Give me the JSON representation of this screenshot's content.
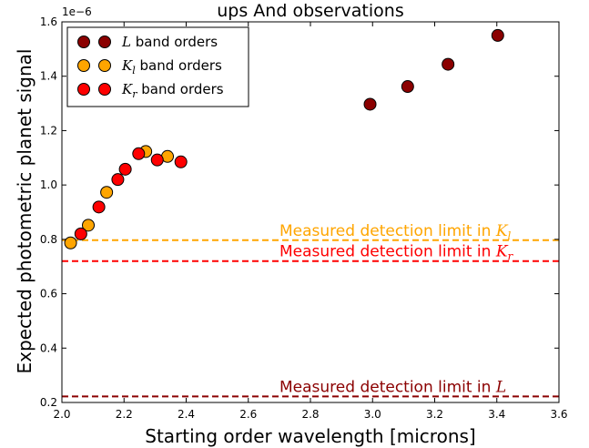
{
  "chart_data": {
    "type": "scatter",
    "title": "ups And observations",
    "xlabel": "Starting order wavelength [microns]",
    "ylabel": "Expected photometric planet signal",
    "offset_label": "1e−6",
    "xlim": [
      2.0,
      3.6
    ],
    "ylim": [
      0.2,
      1.6
    ],
    "xticks": [
      "2.0",
      "2.2",
      "2.4",
      "2.6",
      "2.8",
      "3.0",
      "3.2",
      "3.4",
      "3.6"
    ],
    "yticks": [
      "0.2",
      "0.4",
      "0.6",
      "0.8",
      "1.0",
      "1.2",
      "1.4",
      "1.6"
    ],
    "grid": false,
    "legend_position": "top-left",
    "series": [
      {
        "name": "L band orders",
        "name_symbol": "L",
        "name_sub": "",
        "name_rest": " band orders",
        "color": "#8b0000",
        "points": [
          [
            2.992,
            1.297
          ],
          [
            3.113,
            1.362
          ],
          [
            3.243,
            1.444
          ],
          [
            3.403,
            1.55
          ]
        ]
      },
      {
        "name": "K_l band orders",
        "name_symbol": "K",
        "name_sub": "l",
        "name_rest": " band orders",
        "color": "#ffa500",
        "points": [
          [
            2.028,
            0.787
          ],
          [
            2.085,
            0.852
          ],
          [
            2.144,
            0.973
          ],
          [
            2.27,
            1.123
          ],
          [
            2.34,
            1.105
          ]
        ]
      },
      {
        "name": "K_r band orders",
        "name_symbol": "K",
        "name_sub": "r",
        "name_rest": " band orders",
        "color": "#ff0000",
        "points": [
          [
            2.061,
            0.82
          ],
          [
            2.119,
            0.919
          ],
          [
            2.18,
            1.02
          ],
          [
            2.204,
            1.058
          ],
          [
            2.247,
            1.115
          ],
          [
            2.307,
            1.092
          ],
          [
            2.383,
            1.085
          ]
        ]
      }
    ],
    "hlines": [
      {
        "y": 0.797,
        "color": "#ffa500",
        "label_text": "Measured detection limit in ",
        "label_symbol": "K",
        "label_sub": "l"
      },
      {
        "y": 0.72,
        "color": "#ff0000",
        "label_text": "Measured detection limit in ",
        "label_symbol": "K",
        "label_sub": "r"
      },
      {
        "y": 0.222,
        "color": "#8b0000",
        "label_text": "Measured detection limit in ",
        "label_symbol": "L",
        "label_sub": ""
      }
    ]
  }
}
